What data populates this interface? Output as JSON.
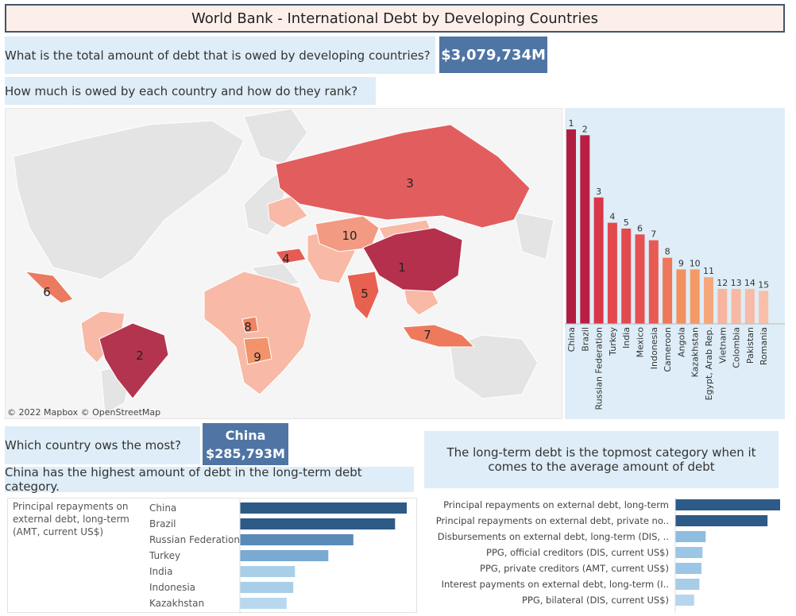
{
  "title": "World Bank - International Debt by Developing Countries",
  "q1": {
    "question": "What is the total amount of debt that is owed by developing countries?",
    "kpi": "$3,079,734M"
  },
  "q2": {
    "question": "How much is owed by each country and how do they rank?"
  },
  "map": {
    "credit": "© 2022 Mapbox © OpenStreetMap",
    "rank_labels": [
      "1",
      "2",
      "3",
      "4",
      "5",
      "6",
      "7",
      "8",
      "9",
      "10"
    ]
  },
  "q3": {
    "question": "Which country ows the most?",
    "kpi_country": "China",
    "kpi_value": "$285,793M",
    "note": "China has the highest amount of debt in the long-term debt category."
  },
  "q4": {
    "statement": "The long-term debt is the topmost category when it comes to the average amount of debt"
  },
  "chart_data": [
    {
      "type": "bar",
      "orientation": "vertical",
      "categories": [
        "China",
        "Brazil",
        "Russian Federation",
        "Turkey",
        "India",
        "Mexico",
        "Indonesia",
        "Cameroon",
        "Angola",
        "Kazakhstan",
        "Egypt, Arab Rep.",
        "Vietnam",
        "Colombia",
        "Pakistan",
        "Romania"
      ],
      "values": [
        100,
        97,
        65,
        52,
        49,
        46,
        43,
        34,
        28,
        28,
        24,
        18,
        18,
        18,
        17
      ],
      "data_labels": [
        "1",
        "2",
        "3",
        "4",
        "5",
        "6",
        "7",
        "8",
        "9",
        "10",
        "11",
        "12",
        "13",
        "14",
        "15"
      ],
      "colors": [
        "#b21d3f",
        "#b81f42",
        "#d93648",
        "#e34a4d",
        "#e34a4d",
        "#e55150",
        "#e85a54",
        "#ee7859",
        "#f2915f",
        "#f39a65",
        "#f5a77b",
        "#f7b5a0",
        "#f8b9a4",
        "#f8bba7",
        "#f9bfa9"
      ]
    },
    {
      "type": "bar",
      "orientation": "horizontal",
      "row_header": "Principal repayments on external debt, long-term (AMT, current US$)",
      "categories": [
        "China",
        "Brazil",
        "Russian Federation",
        "Turkey",
        "India",
        "Indonesia",
        "Kazakhstan"
      ],
      "values": [
        100,
        93,
        68,
        53,
        33,
        32,
        28
      ],
      "colors": [
        "#2d5a87",
        "#2d5a87",
        "#5a8bb8",
        "#7aa9d1",
        "#a9cfe8",
        "#a9cfe8",
        "#b8d8ee"
      ]
    },
    {
      "type": "bar",
      "orientation": "horizontal",
      "categories": [
        "Principal repayments on external debt, long-term",
        "Principal repayments on external debt, private no..",
        "Disbursements on external debt, long-term (DIS, ..",
        "PPG, official creditors (DIS, current US$)",
        "PPG, private creditors (AMT, current US$)",
        "Interest payments on external debt, long-term (I..",
        "PPG, bilateral (DIS, current US$)"
      ],
      "values": [
        100,
        88,
        29,
        26,
        25,
        23,
        18
      ],
      "colors": [
        "#2d5a87",
        "#2d5a87",
        "#8fbde0",
        "#9cc6e5",
        "#9cc6e5",
        "#a6cce8",
        "#b5d6ee"
      ]
    }
  ]
}
